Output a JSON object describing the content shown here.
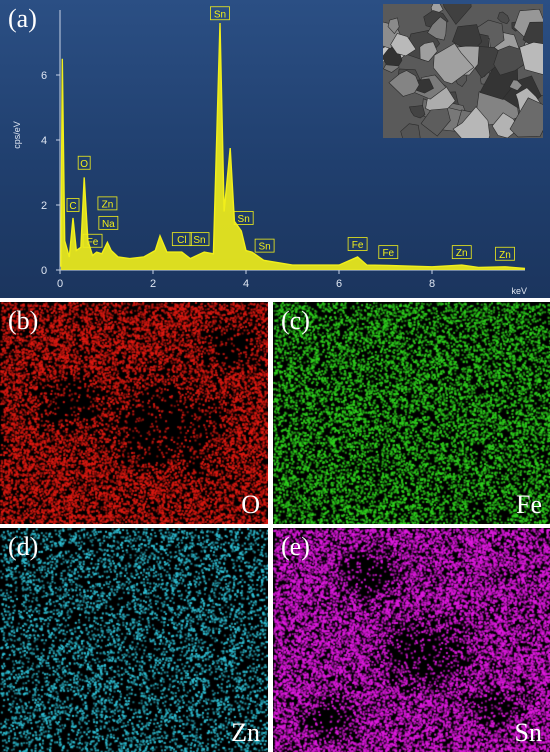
{
  "figure": {
    "panels": [
      {
        "id": "a",
        "label": "(a)"
      },
      {
        "id": "b",
        "label": "(b)",
        "element": "O",
        "color": "#e01a12"
      },
      {
        "id": "c",
        "label": "(c)",
        "element": "Fe",
        "color": "#2fd51e"
      },
      {
        "id": "d",
        "label": "(d)",
        "element": "Zn",
        "color": "#2fc3d8"
      },
      {
        "id": "e",
        "label": "(e)",
        "element": "Sn",
        "color": "#e01ae0"
      }
    ]
  },
  "chart_data": {
    "type": "line",
    "title": "",
    "xlabel": "keV",
    "ylabel": "cps/eV",
    "xlim": [
      0,
      10
    ],
    "ylim": [
      0,
      8
    ],
    "x_ticks": [
      0,
      2,
      4,
      6,
      8
    ],
    "y_ticks": [
      0,
      2,
      4,
      6
    ],
    "grid": false,
    "series_color": "#f2ef1a",
    "background_color": "#24457a",
    "spectrum": [
      [
        0.02,
        0.1
      ],
      [
        0.05,
        6.5
      ],
      [
        0.1,
        0.9
      ],
      [
        0.2,
        0.4
      ],
      [
        0.28,
        1.6
      ],
      [
        0.35,
        0.6
      ],
      [
        0.45,
        0.7
      ],
      [
        0.52,
        2.85
      ],
      [
        0.6,
        0.9
      ],
      [
        0.7,
        0.45
      ],
      [
        0.79,
        0.55
      ],
      [
        0.9,
        0.5
      ],
      [
        1.02,
        0.85
      ],
      [
        1.1,
        0.6
      ],
      [
        1.25,
        0.4
      ],
      [
        1.5,
        0.35
      ],
      [
        1.8,
        0.4
      ],
      [
        2.05,
        0.6
      ],
      [
        2.15,
        1.05
      ],
      [
        2.3,
        0.55
      ],
      [
        2.62,
        0.55
      ],
      [
        2.8,
        0.35
      ],
      [
        3.1,
        0.55
      ],
      [
        3.3,
        0.5
      ],
      [
        3.44,
        7.6
      ],
      [
        3.53,
        1.8
      ],
      [
        3.66,
        3.75
      ],
      [
        3.75,
        1.5
      ],
      [
        3.9,
        1.2
      ],
      [
        4.0,
        0.6
      ],
      [
        4.13,
        0.55
      ],
      [
        4.38,
        0.3
      ],
      [
        5.0,
        0.15
      ],
      [
        6.0,
        0.15
      ],
      [
        6.4,
        0.4
      ],
      [
        6.6,
        0.15
      ],
      [
        7.06,
        0.14
      ],
      [
        8.0,
        0.1
      ],
      [
        8.64,
        0.15
      ],
      [
        9.0,
        0.08
      ],
      [
        9.57,
        0.1
      ],
      [
        10.0,
        0.05
      ]
    ],
    "peak_labels": [
      {
        "text": "Sn",
        "x": 3.44,
        "y": 7.9
      },
      {
        "text": "O",
        "x": 0.52,
        "y": 3.3
      },
      {
        "text": "C",
        "x": 0.28,
        "y": 2.0
      },
      {
        "text": "Zn",
        "x": 1.02,
        "y": 2.05
      },
      {
        "text": "Na",
        "x": 1.04,
        "y": 1.45
      },
      {
        "text": "Fe",
        "x": 0.7,
        "y": 0.9
      },
      {
        "text": "Cl",
        "x": 2.62,
        "y": 0.95
      },
      {
        "text": "Sn",
        "x": 3.0,
        "y": 0.95
      },
      {
        "text": "Sn",
        "x": 3.95,
        "y": 1.6
      },
      {
        "text": "Sn",
        "x": 4.4,
        "y": 0.75
      },
      {
        "text": "Fe",
        "x": 6.4,
        "y": 0.8
      },
      {
        "text": "Fe",
        "x": 7.06,
        "y": 0.55
      },
      {
        "text": "Zn",
        "x": 8.64,
        "y": 0.55
      },
      {
        "text": "Zn",
        "x": 9.57,
        "y": 0.5
      }
    ]
  }
}
